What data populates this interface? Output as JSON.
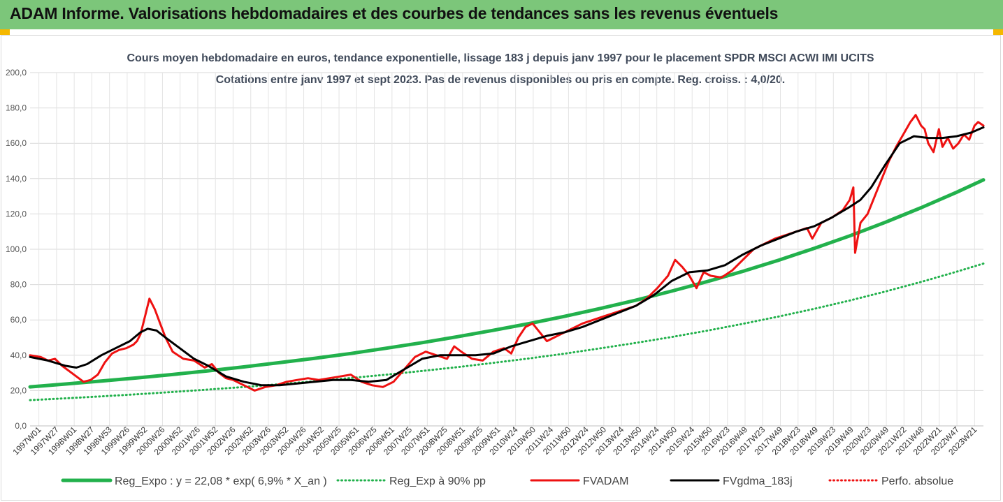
{
  "header": {
    "title": "ADAM Informe. Valorisations hebdomadaires et des courbes de tendances sans les revenus éventuels"
  },
  "colors": {
    "banner": "#7cc67a",
    "corner": "#f5b800",
    "reg": "#22b14c",
    "fvadam": "#ee1111",
    "fvgdma": "#000000",
    "perfo": "#ee1111"
  },
  "chart_data": {
    "type": "line",
    "title": "Cours moyen hebdomadaire en euros, tendance exponentielle, lissage 183 j depuis janv 1997 pour le placement SPDR MSCI ACWI IMI UCITS",
    "subtitle": "Cotations entre janv 1997 et sept 2023. Pas de revenus disponibles ou pris en compte. Reg. croiss. : 4,0/20.",
    "ylim": [
      0,
      200
    ],
    "yticks": [
      "0,0",
      "20,0",
      "40,0",
      "60,0",
      "80,0",
      "100,0",
      "120,0",
      "140,0",
      "160,0",
      "180,0",
      "200,0"
    ],
    "xlim": [
      1997.0,
      2023.75
    ],
    "x_tick_labels": [
      "1997W01",
      "1997W27",
      "1998W01",
      "1998W27",
      "1998W53",
      "1999W26",
      "1999W52",
      "2000W26",
      "2000W52",
      "2001W26",
      "2001W52",
      "2002W26",
      "2002W52",
      "2003W26",
      "2003W52",
      "2004W26",
      "2004W52",
      "2005W25",
      "2005W51",
      "2006W25",
      "2006W51",
      "2007W25",
      "2007W51",
      "2008W25",
      "2008W51",
      "2009W25",
      "2009W51",
      "2010W24",
      "2010W50",
      "2011W24",
      "2011W50",
      "2012W24",
      "2012W50",
      "2013W24",
      "2013W50",
      "2014W24",
      "2014W50",
      "2015W24",
      "2015W50",
      "2016W23",
      "2016W49",
      "2017W23",
      "2017W49",
      "2018W23",
      "2018W49",
      "2019W23",
      "2019W49",
      "2020W23",
      "2020W49",
      "2021W22",
      "2021W48",
      "2022W21",
      "2022W47",
      "2023W21"
    ],
    "legend_position": "bottom",
    "series": [
      {
        "name": "Reg_Expo : y = 22,08 * exp( 6,9% *  X_an )",
        "style": "solid-thick",
        "color": "#22b14c",
        "x": [
          1997.0,
          1998.0,
          1999.0,
          2000.0,
          2001.0,
          2002.0,
          2003.0,
          2004.0,
          2005.0,
          2006.0,
          2007.0,
          2008.0,
          2009.0,
          2010.0,
          2011.0,
          2012.0,
          2013.0,
          2014.0,
          2015.0,
          2016.0,
          2017.0,
          2018.0,
          2019.0,
          2020.0,
          2021.0,
          2022.0,
          2023.0,
          2023.75
        ],
        "y": [
          22.1,
          23.7,
          25.4,
          27.2,
          29.1,
          31.2,
          33.4,
          35.8,
          38.3,
          41.0,
          44.0,
          47.1,
          50.5,
          54.1,
          57.9,
          62.0,
          66.5,
          71.2,
          76.3,
          81.7,
          87.5,
          93.8,
          100.5,
          107.6,
          115.3,
          123.5,
          132.3,
          139.3
        ]
      },
      {
        "name": "Reg_Exp à 90% pp",
        "style": "dotted",
        "color": "#22b14c",
        "x": [
          1997.0,
          1998.0,
          1999.0,
          2000.0,
          2001.0,
          2002.0,
          2003.0,
          2004.0,
          2005.0,
          2006.0,
          2007.0,
          2008.0,
          2009.0,
          2010.0,
          2011.0,
          2012.0,
          2013.0,
          2014.0,
          2015.0,
          2016.0,
          2017.0,
          2018.0,
          2019.0,
          2020.0,
          2021.0,
          2022.0,
          2023.0,
          2023.75
        ],
        "y": [
          14.6,
          15.6,
          16.7,
          17.9,
          19.2,
          20.6,
          22.0,
          23.6,
          25.3,
          27.1,
          29.0,
          31.1,
          33.3,
          35.7,
          38.2,
          40.9,
          43.9,
          47.0,
          50.3,
          53.9,
          57.8,
          61.9,
          66.3,
          71.0,
          76.1,
          81.5,
          87.3,
          91.9
        ]
      },
      {
        "name": "FVADAM",
        "style": "solid",
        "color": "#ee1111",
        "x": [
          1997.0,
          1997.3,
          1997.5,
          1997.7,
          1997.9,
          1998.1,
          1998.3,
          1998.5,
          1998.7,
          1998.9,
          1999.1,
          1999.3,
          1999.5,
          1999.7,
          1999.9,
          2000.0,
          2000.1,
          2000.2,
          2000.35,
          2000.5,
          2000.65,
          2000.8,
          2001.0,
          2001.3,
          2001.6,
          2001.9,
          2002.1,
          2002.3,
          2002.5,
          2002.7,
          2002.9,
          2003.1,
          2003.3,
          2003.6,
          2003.9,
          2004.2,
          2004.5,
          2004.8,
          2005.1,
          2005.4,
          2005.7,
          2006.0,
          2006.3,
          2006.6,
          2006.9,
          2007.2,
          2007.5,
          2007.8,
          2008.1,
          2008.4,
          2008.7,
          2008.9,
          2009.1,
          2009.4,
          2009.7,
          2010.0,
          2010.3,
          2010.5,
          2010.7,
          2010.9,
          2011.1,
          2011.3,
          2011.5,
          2011.7,
          2011.9,
          2012.2,
          2012.5,
          2012.8,
          2013.1,
          2013.4,
          2013.7,
          2014.0,
          2014.3,
          2014.6,
          2014.9,
          2015.1,
          2015.3,
          2015.5,
          2015.7,
          2015.9,
          2016.1,
          2016.4,
          2016.7,
          2017.0,
          2017.3,
          2017.6,
          2017.9,
          2018.2,
          2018.5,
          2018.8,
          2018.95,
          2019.2,
          2019.5,
          2019.8,
          2020.0,
          2020.1,
          2020.15,
          2020.3,
          2020.5,
          2020.7,
          2020.9,
          2021.1,
          2021.3,
          2021.5,
          2021.7,
          2021.85,
          2022.0,
          2022.1,
          2022.2,
          2022.35,
          2022.5,
          2022.6,
          2022.75,
          2022.9,
          2023.05,
          2023.2,
          2023.35,
          2023.5,
          2023.6,
          2023.75
        ],
        "y": [
          40,
          39,
          37,
          38,
          34,
          31,
          28,
          25,
          26,
          29,
          36,
          41,
          43,
          44,
          46,
          48,
          52,
          60,
          72,
          66,
          58,
          50,
          42,
          38,
          37,
          33,
          35,
          30,
          27,
          26,
          24,
          22,
          20,
          22,
          23,
          25,
          26,
          27,
          26,
          27,
          28,
          29,
          25,
          23,
          22,
          25,
          32,
          39,
          42,
          40,
          38,
          45,
          42,
          38,
          37,
          42,
          44,
          41,
          50,
          56,
          58,
          53,
          48,
          50,
          52,
          55,
          58,
          60,
          62,
          64,
          66,
          68,
          72,
          78,
          85,
          94,
          90,
          85,
          78,
          87,
          85,
          84,
          88,
          94,
          100,
          103,
          106,
          108,
          110,
          112,
          106,
          115,
          118,
          122,
          128,
          135,
          98,
          115,
          120,
          130,
          140,
          150,
          158,
          165,
          172,
          176,
          170,
          168,
          160,
          155,
          168,
          158,
          163,
          157,
          160,
          165,
          162,
          170,
          172,
          170
        ]
      },
      {
        "name": "FVgdma_183j",
        "style": "solid",
        "color": "#000000",
        "x": [
          1997.0,
          1997.5,
          1998.0,
          1998.3,
          1998.6,
          1999.0,
          1999.4,
          1999.8,
          2000.1,
          2000.3,
          2000.55,
          2000.8,
          2001.2,
          2001.6,
          2002.0,
          2002.5,
          2003.0,
          2003.5,
          2004.0,
          2004.5,
          2005.0,
          2005.5,
          2006.0,
          2006.5,
          2007.0,
          2007.5,
          2008.0,
          2008.5,
          2009.0,
          2009.5,
          2010.0,
          2010.5,
          2011.0,
          2011.5,
          2012.0,
          2012.5,
          2013.0,
          2013.5,
          2014.0,
          2014.5,
          2015.0,
          2015.5,
          2016.0,
          2016.5,
          2017.0,
          2017.5,
          2018.0,
          2018.5,
          2019.0,
          2019.5,
          2020.0,
          2020.3,
          2020.6,
          2021.0,
          2021.4,
          2021.8,
          2022.2,
          2022.6,
          2023.0,
          2023.4,
          2023.75
        ],
        "y": [
          39,
          37,
          34,
          33,
          35,
          40,
          44,
          48,
          53,
          55,
          54,
          50,
          44,
          38,
          34,
          28,
          25,
          23,
          23,
          24,
          25,
          26,
          26,
          25,
          26,
          32,
          38,
          40,
          40,
          40,
          41,
          45,
          48,
          51,
          53,
          56,
          60,
          64,
          68,
          74,
          82,
          87,
          88,
          91,
          97,
          102,
          106,
          110,
          113,
          118,
          124,
          128,
          135,
          148,
          160,
          164,
          163,
          163,
          164,
          166,
          169
        ]
      },
      {
        "name": "Perfo. absolue",
        "style": "dotted",
        "color": "#ee1111",
        "x": [],
        "y": []
      }
    ]
  }
}
